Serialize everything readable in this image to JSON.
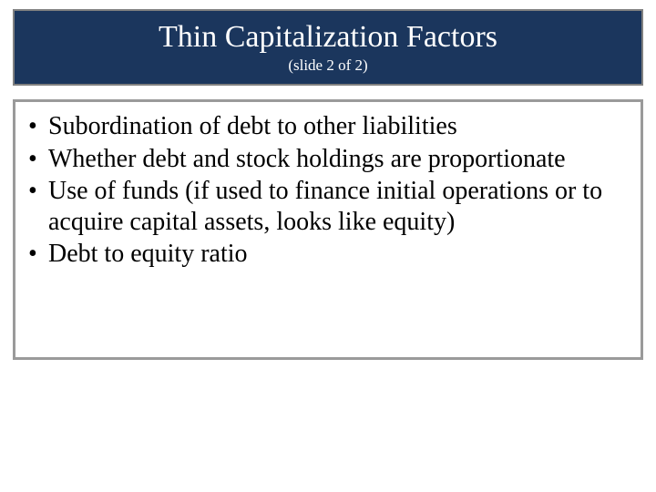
{
  "colors": {
    "title_bg": "#1b365d",
    "title_border": "#808080",
    "title_text": "#ffffff",
    "body_border": "#9a9a9a",
    "body_text": "#000000",
    "slide_bg": "#ffffff"
  },
  "title": {
    "text": "Thin Capitalization Factors",
    "subtitle": "(slide 2 of 2)",
    "title_fontsize": 34,
    "subtitle_fontsize": 17
  },
  "body": {
    "bullet_fontsize": 28,
    "bullet_char": "•",
    "items": [
      "Subordination of debt to other liabilities",
      "Whether debt and stock holdings are proportionate",
      "Use of funds (if used to finance initial operations or to acquire capital assets, looks like equity)",
      "Debt to equity ratio"
    ]
  }
}
